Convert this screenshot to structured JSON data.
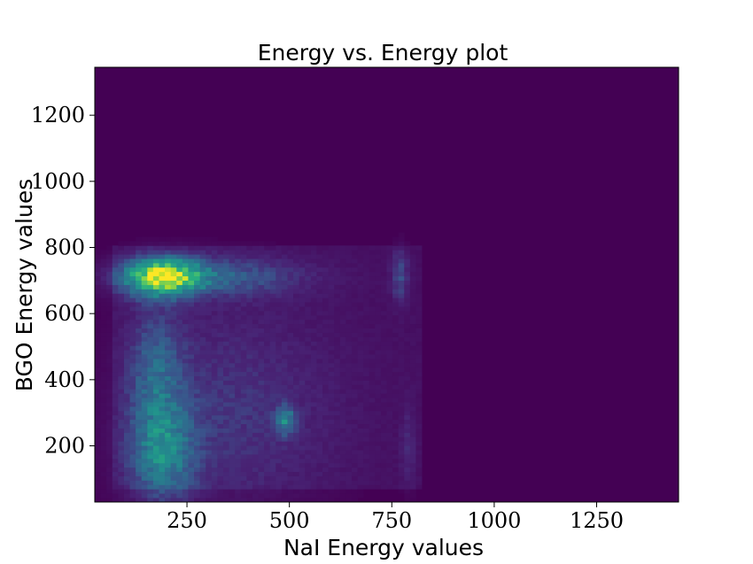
{
  "chart_data": {
    "type": "heatmap",
    "title": "Energy vs. Energy plot",
    "xlabel": "NaI Energy values",
    "ylabel": "BGO Energy values",
    "xlim": [
      25,
      1450
    ],
    "ylim": [
      30,
      1345
    ],
    "x_ticks": [
      250,
      500,
      750,
      1000,
      1250
    ],
    "y_ticks": [
      200,
      400,
      600,
      800,
      1000,
      1200
    ],
    "x_tick_labels": [
      "250",
      "500",
      "750",
      "1000",
      "1250"
    ],
    "y_tick_labels": [
      "200",
      "400",
      "600",
      "800",
      "1000",
      "1200"
    ],
    "colormap": "viridis",
    "background_color": "#440154",
    "grid": false,
    "legend": "none",
    "bins": {
      "x": 100,
      "y": 100
    },
    "features": [
      {
        "shape": "rect",
        "x": [
          70,
          820
        ],
        "y": [
          65,
          810
        ],
        "level": 0.05
      },
      {
        "shape": "gauss",
        "x": 190,
        "y": 712,
        "sx": 60,
        "sy": 38,
        "level": 0.75
      },
      {
        "shape": "gauss",
        "x": 300,
        "y": 712,
        "sx": 150,
        "sy": 40,
        "level": 0.25
      },
      {
        "shape": "gauss",
        "x": 770,
        "y": 715,
        "sx": 14,
        "sy": 55,
        "level": 0.18
      },
      {
        "shape": "gauss",
        "x": 190,
        "y": 180,
        "sx": 55,
        "sy": 110,
        "level": 0.35
      },
      {
        "shape": "gauss",
        "x": 175,
        "y": 430,
        "sx": 45,
        "sy": 130,
        "level": 0.22
      },
      {
        "shape": "gauss",
        "x": 490,
        "y": 280,
        "sx": 16,
        "sy": 30,
        "level": 0.35
      },
      {
        "shape": "gauss",
        "x": 790,
        "y": 200,
        "sx": 12,
        "sy": 90,
        "level": 0.08
      },
      {
        "shape": "gauss",
        "x": 350,
        "y": 300,
        "sx": 180,
        "sy": 220,
        "level": 0.12
      }
    ]
  }
}
